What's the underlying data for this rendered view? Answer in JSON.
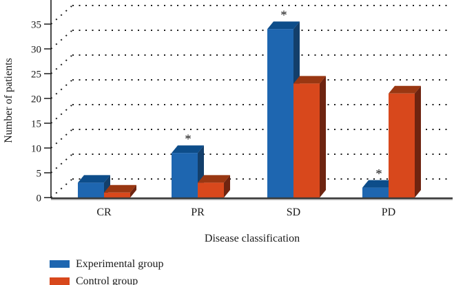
{
  "figure": {
    "ylabel": "Number of patients",
    "xlabel": "Disease classification"
  },
  "chart_data": {
    "type": "bar",
    "style": "3d-grouped",
    "categories": [
      "CR",
      "PR",
      "SD",
      "PD"
    ],
    "series": [
      {
        "name": "Experimental group",
        "color": "#1e66b0",
        "values": [
          3,
          9,
          34,
          2
        ]
      },
      {
        "name": "Control group",
        "color": "#d8481c",
        "values": [
          1,
          3,
          23,
          21
        ]
      }
    ],
    "annotations": {
      "marker": "*",
      "on_series": "Experimental group",
      "categories": [
        "PR",
        "SD",
        "PD"
      ]
    },
    "xlabel": "Disease classification",
    "ylabel": "Number of patients",
    "ylim": [
      0,
      35
    ],
    "yticks": [
      0,
      5,
      10,
      15,
      20,
      25,
      30,
      35
    ],
    "grid": {
      "style": "dotted",
      "axis": "y",
      "wall": "back"
    },
    "legend_position": "bottom-left"
  },
  "colors": {
    "experimental_front": "#1e66b0",
    "experimental_top": "#0d4d8a",
    "experimental_side": "#133f6b",
    "control_front": "#d8481c",
    "control_top": "#993712",
    "control_side": "#6e2410",
    "axis": "#1a1a1a",
    "grid_dots": "#1a1a1a",
    "baseline": "#3a3a3a",
    "baseline_shadow": "#9a9a9a",
    "text": "#1a1a1a"
  }
}
